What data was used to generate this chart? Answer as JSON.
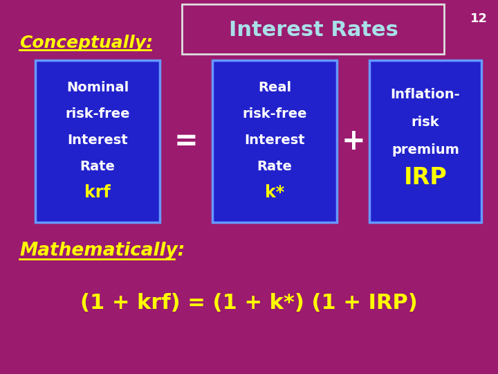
{
  "bg_color": "#9B1B6E",
  "title_text": "Interest Rates",
  "title_color": "#A8E0E8",
  "title_box_edge": "#E0E0E0",
  "slide_num": "12",
  "slide_num_color": "#FFFFFF",
  "conceptually_text": "Conceptually:",
  "conceptually_color": "#FFFF00",
  "box_bg": "#2222CC",
  "box_edge": "#6699FF",
  "box1_lines": [
    "Nominal",
    "risk-free",
    "Interest",
    "Rate"
  ],
  "box1_sub": "krf",
  "box2_lines": [
    "Real",
    "risk-free",
    "Interest",
    "Rate"
  ],
  "box2_sub": "k*",
  "box3_lines": [
    "Inflation-",
    "risk",
    "premium"
  ],
  "box3_sub": "IRP",
  "box_text_color": "#FFFFFF",
  "box_sub_color": "#FFFF00",
  "eq_sign": "=",
  "plus_sign": "+",
  "operator_color": "#FFFFFF",
  "math_label": "Mathematically:",
  "math_label_color": "#FFFF00",
  "math_formula": "(1 + krf) = (1 + k*) (1 + IRP)",
  "math_formula_color": "#FFFF00"
}
